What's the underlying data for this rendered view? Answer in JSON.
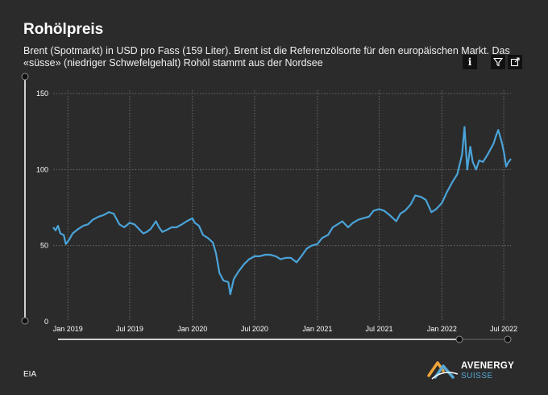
{
  "header": {
    "title": "Rohölpreis",
    "subtitle": "Brent (Spotmarkt) in USD pro Fass (159 Liter). Brent ist die Referenzölsorte für den europäischen Markt. Das «süsse» (niedriger Schwefelgehalt) Rohöl stammt aus der Nordsee"
  },
  "toolbar": {
    "info_label": "i",
    "info_icon": "info-icon",
    "filter_icon": "filter-icon",
    "expand_icon": "expand-icon"
  },
  "footer": {
    "source": "EIA",
    "logo_main": "AVENERGY",
    "logo_sub": "SUISSE"
  },
  "colors": {
    "background": "#2b2b2b",
    "line": "#4aa3d8",
    "grid": "#6a6a6a",
    "logo_orange": "#f0a33a",
    "logo_blue": "#56a9d6"
  },
  "chart_data": {
    "type": "line",
    "title": "Rohölpreis",
    "ylim": [
      0,
      150
    ],
    "yticks": [
      0,
      50,
      100,
      150
    ],
    "xlim": [
      "2018-11-19",
      "2022-07-22"
    ],
    "xticks": [
      {
        "date": "2019-01-01",
        "label": "Jan 2019"
      },
      {
        "date": "2019-07-01",
        "label": "Jul 2019"
      },
      {
        "date": "2020-01-01",
        "label": "Jan 2020"
      },
      {
        "date": "2020-07-01",
        "label": "Jul 2020"
      },
      {
        "date": "2021-01-01",
        "label": "Jan 2021"
      },
      {
        "date": "2021-07-01",
        "label": "Jul 2021"
      },
      {
        "date": "2022-01-01",
        "label": "Jan 2022"
      },
      {
        "date": "2022-07-01",
        "label": "Jul 2022"
      }
    ],
    "grid": true,
    "legend": "none",
    "series": [
      {
        "x": [
          "2018-11-19",
          "2018-11-26",
          "2018-12-03",
          "2018-12-10",
          "2018-12-20",
          "2018-12-26",
          "2019-01-05",
          "2019-01-15",
          "2019-02-01",
          "2019-02-15",
          "2019-03-01",
          "2019-03-15",
          "2019-04-01",
          "2019-04-15",
          "2019-05-01",
          "2019-05-15",
          "2019-06-01",
          "2019-06-15",
          "2019-07-01",
          "2019-07-15",
          "2019-08-01",
          "2019-08-10",
          "2019-08-20",
          "2019-09-01",
          "2019-09-16",
          "2019-09-25",
          "2019-10-05",
          "2019-10-15",
          "2019-11-01",
          "2019-11-15",
          "2019-12-01",
          "2019-12-15",
          "2020-01-01",
          "2020-01-08",
          "2020-01-20",
          "2020-02-01",
          "2020-02-15",
          "2020-03-01",
          "2020-03-10",
          "2020-03-20",
          "2020-04-01",
          "2020-04-15",
          "2020-04-21",
          "2020-05-01",
          "2020-05-15",
          "2020-06-01",
          "2020-06-15",
          "2020-07-01",
          "2020-07-15",
          "2020-08-01",
          "2020-08-15",
          "2020-09-01",
          "2020-09-15",
          "2020-10-01",
          "2020-10-15",
          "2020-11-01",
          "2020-11-15",
          "2020-12-01",
          "2020-12-15",
          "2021-01-01",
          "2021-01-15",
          "2021-02-01",
          "2021-02-15",
          "2021-03-01",
          "2021-03-15",
          "2021-04-01",
          "2021-04-15",
          "2021-05-01",
          "2021-05-15",
          "2021-06-01",
          "2021-06-15",
          "2021-07-01",
          "2021-07-15",
          "2021-08-01",
          "2021-08-20",
          "2021-09-01",
          "2021-09-15",
          "2021-10-01",
          "2021-10-15",
          "2021-11-01",
          "2021-11-15",
          "2021-12-01",
          "2021-12-15",
          "2022-01-01",
          "2022-01-15",
          "2022-02-01",
          "2022-02-15",
          "2022-03-01",
          "2022-03-08",
          "2022-03-16",
          "2022-03-25",
          "2022-04-01",
          "2022-04-11",
          "2022-04-20",
          "2022-05-01",
          "2022-05-15",
          "2022-06-01",
          "2022-06-08",
          "2022-06-15",
          "2022-06-25",
          "2022-07-01",
          "2022-07-08",
          "2022-07-15",
          "2022-07-22"
        ],
        "y": [
          62,
          60,
          63,
          58,
          57,
          51,
          54,
          58,
          61,
          63,
          64,
          67,
          69,
          70,
          72,
          71,
          64,
          62,
          65,
          64,
          60,
          58,
          59,
          61,
          66,
          62,
          59,
          60,
          62,
          62,
          64,
          66,
          68,
          65,
          63,
          57,
          55,
          52,
          45,
          32,
          27,
          26,
          18,
          28,
          33,
          38,
          41,
          43,
          43,
          44,
          44,
          43,
          41,
          42,
          42,
          39,
          43,
          48,
          50,
          51,
          55,
          57,
          62,
          64,
          66,
          62,
          65,
          67,
          68,
          69,
          73,
          74,
          73,
          70,
          66,
          71,
          73,
          77,
          83,
          82,
          80,
          72,
          74,
          78,
          85,
          92,
          97,
          110,
          128,
          100,
          115,
          105,
          100,
          106,
          105,
          110,
          117,
          122,
          126,
          118,
          112,
          102,
          105,
          107
        ]
      }
    ]
  }
}
